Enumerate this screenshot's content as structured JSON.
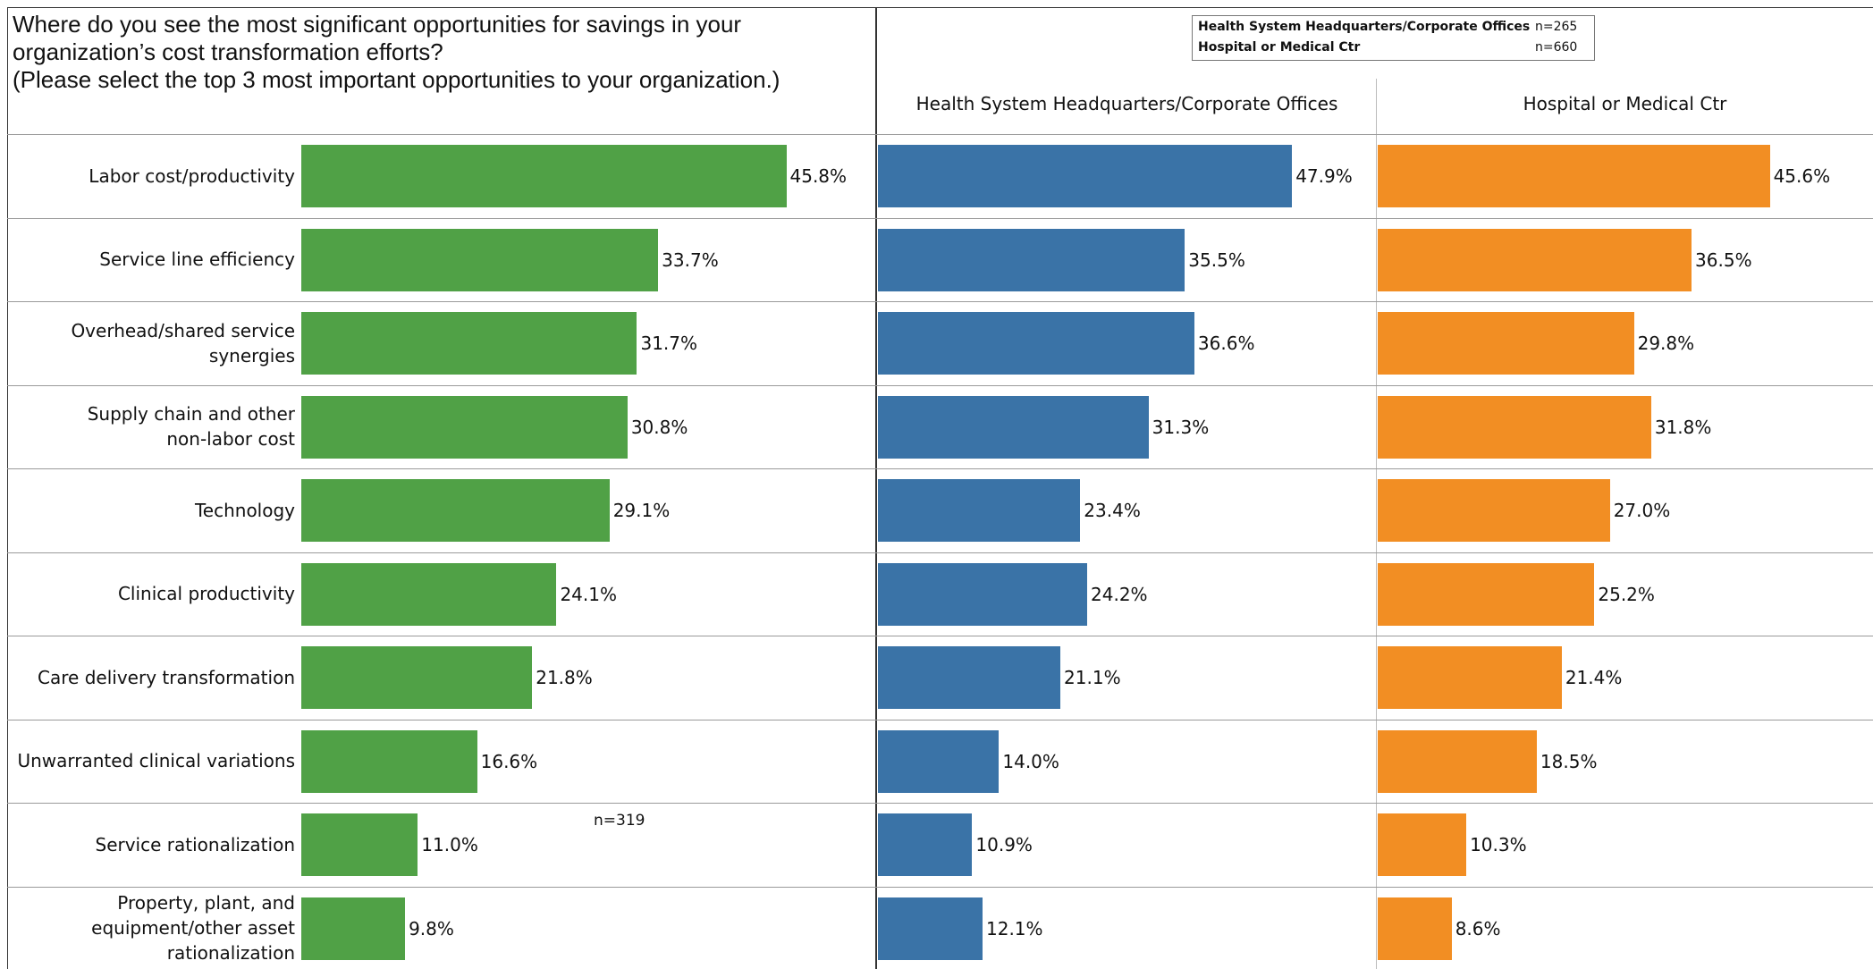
{
  "chart_data": [
    {
      "type": "bar",
      "title": "Where do you see the most significant opportunities for savings in your\norganization’s cost transformation efforts?\n(Please select the top 3 most important opportunities to your organization.)",
      "categories": [
        "Labor cost/productivity",
        "Service line efficiency",
        "Overhead/shared service\nsynergies",
        "Supply chain and other\nnon-labor cost",
        "Technology",
        "Clinical productivity",
        "Care delivery transformation",
        "Unwarranted clinical variations",
        "Service rationalization",
        "Property, plant, and\nequipment/other asset\nrationalization"
      ],
      "values": [
        45.8,
        33.7,
        31.7,
        30.8,
        29.1,
        24.1,
        21.8,
        16.6,
        11.0,
        9.8
      ],
      "value_labels": [
        "45.8%",
        "33.7%",
        "31.7%",
        "30.8%",
        "29.1%",
        "24.1%",
        "21.8%",
        "16.6%",
        "11.0%",
        "9.8%"
      ],
      "color": "#50a146",
      "xlim": [
        0,
        54.2
      ],
      "annotation": "n=319"
    },
    {
      "type": "bar",
      "title": "Health System Headquarters/Corporate Offices",
      "values": [
        47.9,
        35.5,
        36.6,
        31.3,
        23.4,
        24.2,
        21.1,
        14.0,
        10.9,
        12.1
      ],
      "value_labels": [
        "47.9%",
        "35.5%",
        "36.6%",
        "31.3%",
        "23.4%",
        "24.2%",
        "21.1%",
        "14.0%",
        "10.9%",
        "12.1%"
      ],
      "color": "#3a73a7",
      "xlim": [
        0,
        57.6
      ]
    },
    {
      "type": "bar",
      "title": "Hospital or Medical Ctr",
      "values": [
        45.6,
        36.5,
        29.8,
        31.8,
        27.0,
        25.2,
        21.4,
        18.5,
        10.3,
        8.6
      ],
      "value_labels": [
        "45.6%",
        "36.5%",
        "29.8%",
        "31.8%",
        "27.0%",
        "25.2%",
        "21.4%",
        "18.5%",
        "10.3%",
        "8.6%"
      ],
      "color": "#f28e23",
      "xlim": [
        0,
        57.6
      ]
    }
  ],
  "legend": {
    "entries": [
      {
        "name": "Health System Headquarters/Corporate Offices",
        "n": "n=265"
      },
      {
        "name": "Hospital or Medical Ctr",
        "n": "n=660"
      }
    ]
  }
}
